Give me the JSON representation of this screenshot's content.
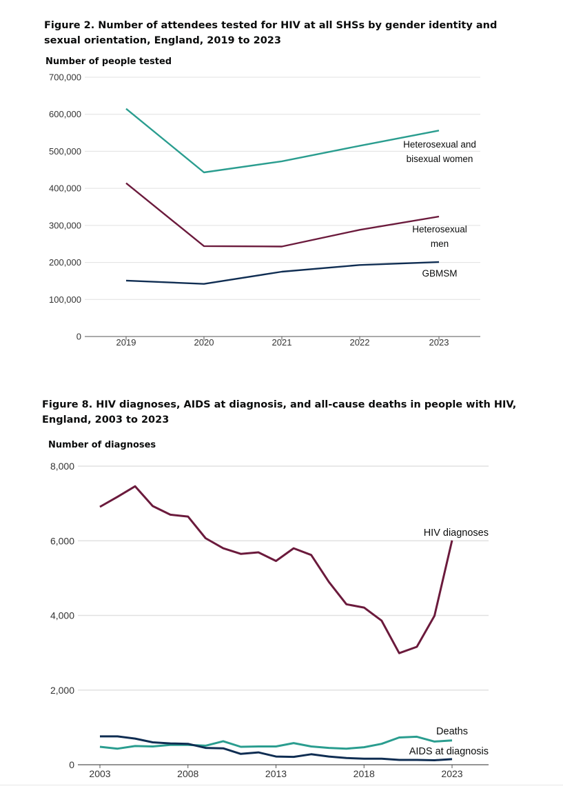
{
  "colors": {
    "teal": "#2a9d8f",
    "maroon": "#6b1a3c",
    "navy": "#0f2d52",
    "grid": "#e0e0e0",
    "axis": "#555555"
  },
  "chart_data": [
    {
      "type": "line",
      "title": "Figure 2. Number of attendees tested for HIV at all SHSs by gender identity and sexual orientation, England, 2019 to 2023",
      "ylabel": "Number of people tested",
      "xlabel": "",
      "x": [
        "2019",
        "2020",
        "2021",
        "2022",
        "2023"
      ],
      "ylim": [
        0,
        700000
      ],
      "yticks": [
        "0",
        "100,000",
        "200,000",
        "300,000",
        "400,000",
        "500,000",
        "600,000",
        "700,000"
      ],
      "grid": "horizontal",
      "series": [
        {
          "name": "Heterosexual and bisexual women",
          "name_lines": [
            "Heterosexual and",
            "bisexual women"
          ],
          "color": "#2a9d8f",
          "values": [
            615000,
            443000,
            473000,
            515000,
            556000
          ]
        },
        {
          "name": "Heterosexual men",
          "name_lines": [
            "Heterosexual",
            "men"
          ],
          "color": "#6b1a3c",
          "values": [
            414000,
            244000,
            243000,
            288000,
            324000
          ]
        },
        {
          "name": "GBMSM",
          "name_lines": [
            "GBMSM"
          ],
          "color": "#0f2d52",
          "values": [
            151000,
            142000,
            175000,
            193000,
            201000
          ]
        }
      ]
    },
    {
      "type": "line",
      "title": "Figure 8. HIV diagnoses, AIDS at diagnosis, and all-cause deaths in people with HIV, England, 2003 to 2023",
      "ylabel": "Number of diagnoses",
      "xlabel": "",
      "x": [
        2003,
        2004,
        2005,
        2006,
        2007,
        2008,
        2009,
        2010,
        2011,
        2012,
        2013,
        2014,
        2015,
        2016,
        2017,
        2018,
        2019,
        2020,
        2021,
        2022,
        2023
      ],
      "xticks": [
        "2003",
        "2008",
        "2013",
        "2018",
        "2023"
      ],
      "ylim": [
        0,
        8000
      ],
      "yticks": [
        "0",
        "2,000",
        "4,000",
        "6,000",
        "8,000"
      ],
      "grid": "horizontal",
      "series": [
        {
          "name": "HIV diagnoses",
          "color": "#6b1a3c",
          "values": [
            6910,
            7180,
            7460,
            6930,
            6700,
            6650,
            6070,
            5800,
            5650,
            5690,
            5460,
            5800,
            5620,
            4900,
            4300,
            4210,
            3860,
            2990,
            3160,
            3990,
            6010
          ]
        },
        {
          "name": "Deaths",
          "color": "#2a9d8f",
          "values": [
            480,
            430,
            500,
            490,
            530,
            530,
            510,
            630,
            480,
            490,
            490,
            580,
            490,
            450,
            430,
            470,
            560,
            730,
            750,
            620,
            650
          ]
        },
        {
          "name": "AIDS at diagnosis",
          "color": "#0f2d52",
          "values": [
            760,
            760,
            700,
            600,
            570,
            560,
            450,
            440,
            290,
            330,
            220,
            210,
            280,
            220,
            180,
            160,
            160,
            130,
            130,
            120,
            150
          ]
        }
      ]
    }
  ]
}
